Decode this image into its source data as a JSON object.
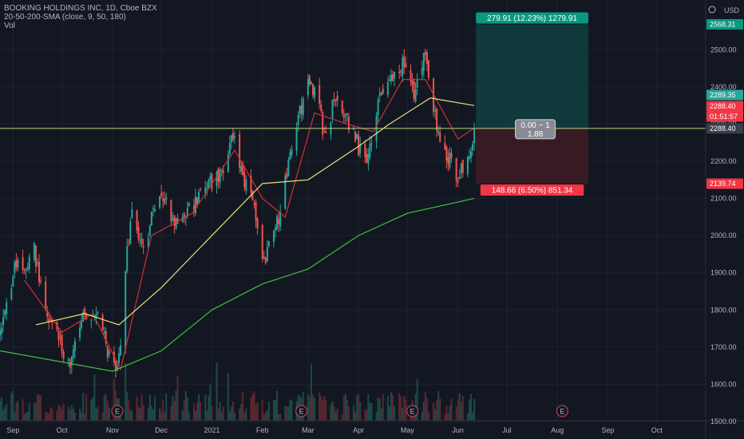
{
  "header": {
    "title": "BOOKING HOLDINGS INC, 1D, Cboe BZX",
    "indicator": "20-50-200-SMA (close, 9, 50, 180)",
    "volume_label": "Vol",
    "currency": "USD",
    "settings_icon": "settings-icon"
  },
  "colors": {
    "background": "#131722",
    "up": "#26a69a",
    "down": "#ef5350",
    "sma_fast": "#d32f2f",
    "sma_mid": "#e6e279",
    "sma_slow": "#3fbf3f",
    "profit_zone": "#0f3d3e",
    "loss_zone": "#3d1b23",
    "price_line": "#b9d983"
  },
  "position_tool": {
    "target_label": "279.91 (12.23%) 1279.91",
    "stop_label": "148.66 (6.50%) 851.34",
    "ratio_line1": "0.00 ~ 1",
    "ratio_line2": "1.88",
    "target_price": 2568.31,
    "entry_price": 2288.4,
    "stop_price": 2139.74
  },
  "price_tags": {
    "target": "2568.31",
    "sma_fast_value": "2289.35",
    "last_price": "2288.40",
    "countdown": "01:51:57",
    "line_price": "2288.40",
    "stop": "2139.74"
  },
  "earnings_markers": [
    {
      "label": "E",
      "date": "2020-11-04"
    },
    {
      "label": "E",
      "date": "2021-02-25"
    },
    {
      "label": "E",
      "date": "2021-05-04"
    },
    {
      "label": "E",
      "date": "2021-08-04"
    }
  ],
  "chart_data": {
    "type": "candlestick",
    "x_axis": {
      "type": "date",
      "range": [
        "2020-08-24",
        "2021-10-31"
      ],
      "tick_labels": [
        "Sep",
        "Oct",
        "Nov",
        "Dec",
        "2021",
        "Feb",
        "Mar",
        "Apr",
        "May",
        "Jun",
        "Jul",
        "Aug",
        "Sep",
        "Oct"
      ],
      "tick_dates": [
        "2020-09-01",
        "2020-10-01",
        "2020-11-01",
        "2020-12-01",
        "2021-01-01",
        "2021-02-01",
        "2021-03-01",
        "2021-04-01",
        "2021-05-01",
        "2021-06-01",
        "2021-07-01",
        "2021-08-01",
        "2021-09-01",
        "2021-10-01"
      ]
    },
    "y_axis": {
      "unit": "USD",
      "range": [
        1500,
        2600
      ],
      "tick_labels": [
        "1500.00",
        "1600.00",
        "1700.00",
        "1800.00",
        "1900.00",
        "2000.00",
        "2100.00",
        "2200.00",
        "2300.00",
        "2400.00",
        "2500.00"
      ],
      "tick_values": [
        1500,
        1600,
        1700,
        1800,
        1900,
        2000,
        2100,
        2200,
        2300,
        2400,
        2500
      ]
    },
    "price_path": [
      [
        "2020-08-24",
        1725
      ],
      [
        "2020-09-02",
        1920
      ],
      [
        "2020-09-08",
        1900
      ],
      [
        "2020-09-14",
        1960
      ],
      [
        "2020-09-21",
        1790
      ],
      [
        "2020-09-29",
        1720
      ],
      [
        "2020-10-06",
        1640
      ],
      [
        "2020-10-12",
        1760
      ],
      [
        "2020-10-22",
        1810
      ],
      [
        "2020-10-28",
        1700
      ],
      [
        "2020-11-03",
        1630
      ],
      [
        "2020-11-06",
        1680
      ],
      [
        "2020-11-09",
        1920
      ],
      [
        "2020-11-13",
        2060
      ],
      [
        "2020-11-20",
        1960
      ],
      [
        "2020-11-30",
        2120
      ],
      [
        "2020-12-10",
        2030
      ],
      [
        "2020-12-21",
        2080
      ],
      [
        "2021-01-08",
        2180
      ],
      [
        "2021-01-13",
        2280
      ],
      [
        "2021-01-19",
        2180
      ],
      [
        "2021-01-28",
        2050
      ],
      [
        "2021-02-01",
        1920
      ],
      [
        "2021-02-10",
        2030
      ],
      [
        "2021-02-17",
        2180
      ],
      [
        "2021-02-25",
        2350
      ],
      [
        "2021-03-03",
        2420
      ],
      [
        "2021-03-12",
        2260
      ],
      [
        "2021-03-18",
        2380
      ],
      [
        "2021-03-26",
        2300
      ],
      [
        "2021-04-05",
        2200
      ],
      [
        "2021-04-15",
        2380
      ],
      [
        "2021-04-22",
        2420
      ],
      [
        "2021-04-28",
        2470
      ],
      [
        "2021-05-05",
        2390
      ],
      [
        "2021-05-12",
        2480
      ],
      [
        "2021-05-17",
        2330
      ],
      [
        "2021-05-24",
        2230
      ],
      [
        "2021-06-01",
        2160
      ],
      [
        "2021-06-08",
        2200
      ],
      [
        "2021-06-11",
        2288.4
      ]
    ],
    "sma_series": [
      {
        "label": "9",
        "points": [
          [
            "2020-09-08",
            1880
          ],
          [
            "2020-10-01",
            1740
          ],
          [
            "2020-10-20",
            1790
          ],
          [
            "2020-11-06",
            1640
          ],
          [
            "2020-11-25",
            2000
          ],
          [
            "2020-12-20",
            2060
          ],
          [
            "2021-01-15",
            2230
          ],
          [
            "2021-02-01",
            2100
          ],
          [
            "2021-02-15",
            2050
          ],
          [
            "2021-03-05",
            2330
          ],
          [
            "2021-03-25",
            2300
          ],
          [
            "2021-04-10",
            2280
          ],
          [
            "2021-04-28",
            2420
          ],
          [
            "2021-05-12",
            2420
          ],
          [
            "2021-06-01",
            2260
          ],
          [
            "2021-06-11",
            2289.35
          ]
        ]
      },
      {
        "label": "50",
        "points": [
          [
            "2020-09-15",
            1760
          ],
          [
            "2020-10-15",
            1790
          ],
          [
            "2020-11-05",
            1760
          ],
          [
            "2020-12-01",
            1860
          ],
          [
            "2021-01-01",
            2000
          ],
          [
            "2021-02-01",
            2140
          ],
          [
            "2021-03-01",
            2150
          ],
          [
            "2021-04-01",
            2240
          ],
          [
            "2021-04-20",
            2300
          ],
          [
            "2021-05-15",
            2370
          ],
          [
            "2021-06-11",
            2350
          ]
        ]
      },
      {
        "label": "180",
        "points": [
          [
            "2020-08-24",
            1690
          ],
          [
            "2020-10-01",
            1660
          ],
          [
            "2020-11-01",
            1635
          ],
          [
            "2020-12-01",
            1690
          ],
          [
            "2021-01-01",
            1800
          ],
          [
            "2021-02-01",
            1870
          ],
          [
            "2021-03-01",
            1910
          ],
          [
            "2021-04-01",
            2000
          ],
          [
            "2021-05-01",
            2060
          ],
          [
            "2021-06-11",
            2100
          ]
        ]
      }
    ]
  }
}
